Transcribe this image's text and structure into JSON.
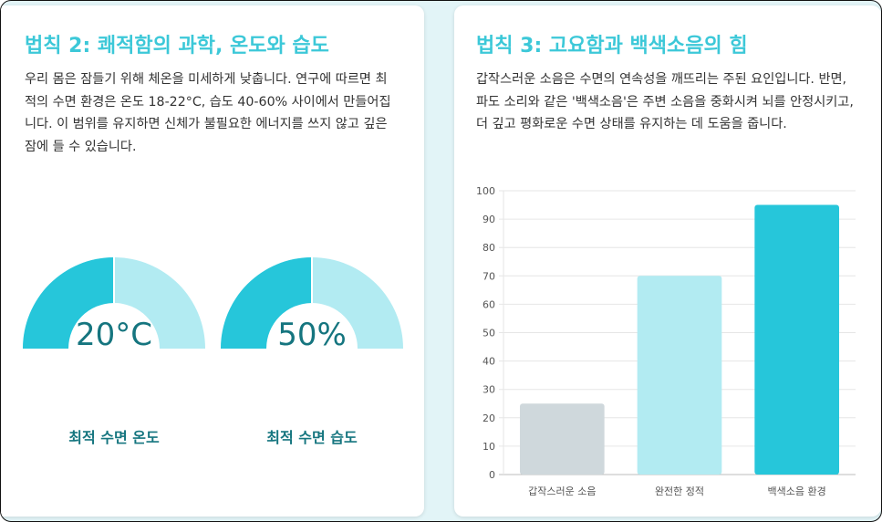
{
  "law2": {
    "title": "법칙 2: 쾌적함의 과학, 온도와 습도",
    "description": "우리 몸은 잠들기 위해 체온을 미세하게 낮춥니다. 연구에 따르면 최적의 수면 환경은 온도 18-22°C, 습도 40-60% 사이에서 만들어집니다. 이 범위를 유지하면 신체가 불필요한 에너지를 쓰지 않고 깊은 잠에 들 수 있습니다.",
    "gauges": [
      {
        "value_text": "20°C",
        "label": "최적 수면 온도",
        "fill_fraction": 0.5
      },
      {
        "value_text": "50%",
        "label": "최적 수면 습도",
        "fill_fraction": 0.5
      }
    ]
  },
  "law3": {
    "title": "법칙 3: 고요함과 백색소음의 힘",
    "description": "갑작스러운 소음은 수면의 연속성을 깨뜨리는 주된 요인입니다. 반면, 파도 소리와 같은 '백색소음'은 주변 소음을 중화시켜 뇌를 안정시키고, 더 깊고 평화로운 수면 상태를 유지하는 데 도움을 줍니다."
  },
  "colors": {
    "accent": "#3cc8d8",
    "gauge_fill": "#26c6da",
    "gauge_track": "#b2ebf2",
    "dark_teal": "#15757f",
    "bar_gray": "#cfd8dc",
    "bar_light": "#b2ebf2",
    "bar_strong": "#26c6da",
    "background": "#e2f4f7"
  },
  "chart_data": {
    "type": "bar",
    "categories": [
      "갑작스러운 소음",
      "완전한 정적",
      "백색소음 환경"
    ],
    "values": [
      25,
      70,
      95
    ],
    "bar_colors": [
      "#cfd8dc",
      "#b2ebf2",
      "#26c6da"
    ],
    "ylim": [
      0,
      100
    ],
    "yticks": [
      0,
      10,
      20,
      30,
      40,
      50,
      60,
      70,
      80,
      90,
      100
    ],
    "title": "",
    "xlabel": "",
    "ylabel": "",
    "grid": true
  }
}
